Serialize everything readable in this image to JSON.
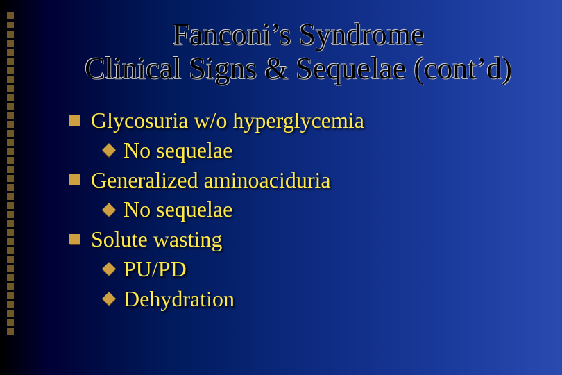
{
  "slide": {
    "title_line1": "Fanconi’s Syndrome",
    "title_line2": "Clinical Signs & Sequelae (cont’d)",
    "bullets": [
      {
        "text": "Glycosuria w/o hyperglycemia",
        "subs": [
          "No sequelae"
        ]
      },
      {
        "text": "Generalized aminoaciduria",
        "subs": [
          "No sequelae"
        ]
      },
      {
        "text": "Solute wasting",
        "subs": [
          "PU/PD",
          "Dehydration"
        ]
      }
    ]
  },
  "style": {
    "background_gradient": [
      "#000000",
      "#000033",
      "#001a5c",
      "#0d2a80",
      "#1a3a9c",
      "#2a4ab0"
    ],
    "title_color": "#000000",
    "title_fontsize": 44,
    "body_color": "#ffe84a",
    "body_fontsize": 32,
    "bullet_color": "#cfa040",
    "decor_square_color": "#cfa040",
    "decor_square_count": 36,
    "font_family": "Times New Roman"
  }
}
